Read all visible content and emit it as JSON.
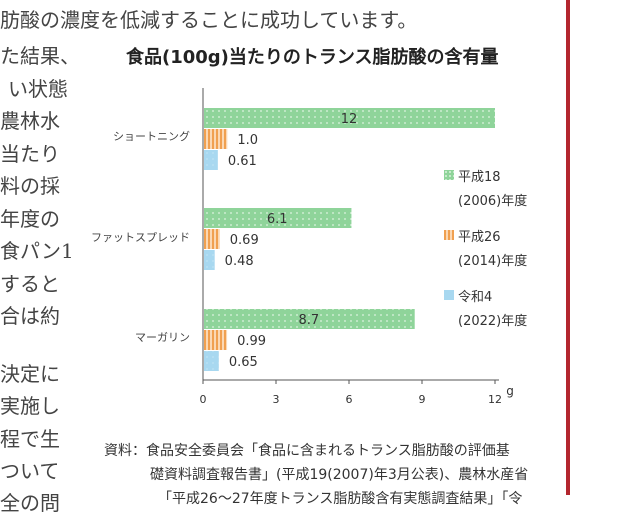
{
  "body_text": {
    "top_line": "肪酸の濃度を低減することに成功しています。",
    "left_fragments": [
      "た結果、",
      "い状態",
      "農林水",
      "当たり",
      "料の採",
      "年度の",
      "食パン1",
      "すると",
      "合は約",
      "決定に",
      "実施し",
      "程で生",
      "ついて",
      "全の問"
    ]
  },
  "legend": [
    {
      "label": "平成18",
      "sub": "(2006)年度",
      "color": "#8fd49a"
    },
    {
      "label": "平成26",
      "sub": "(2014)年度",
      "color": "#f0a860"
    },
    {
      "label": "令和4",
      "sub": "(2022)年度",
      "color": "#a8d8f0"
    }
  ],
  "source": {
    "line1": "資料：食品安全委員会「食品に含まれるトランス脂肪酸の評価基",
    "line2": "礎資料調査報告書」(平成19(2007)年3月公表)、農林水産省",
    "line3": "「平成26～27年度トランス脂肪酸含有実態調査結果」「令"
  },
  "chart_data": {
    "type": "bar",
    "orientation": "horizontal",
    "title": "食品(100g)当たりのトランス脂肪酸の含有量",
    "categories": [
      "ショートニング",
      "ファットスプレッド",
      "マーガリン"
    ],
    "series": [
      {
        "name": "平成18(2006)年度",
        "values": [
          12,
          6.1,
          8.7
        ],
        "value_labels": [
          "12",
          "6.1",
          "8.7"
        ]
      },
      {
        "name": "平成26(2014)年度",
        "values": [
          1.0,
          0.69,
          0.99
        ],
        "value_labels": [
          "1.0",
          "0.69",
          "0.99"
        ]
      },
      {
        "name": "令和4(2022)年度",
        "values": [
          0.61,
          0.48,
          0.65
        ],
        "value_labels": [
          "0.61",
          "0.48",
          "0.65"
        ]
      }
    ],
    "x_ticks": [
      "0",
      "3",
      "6",
      "9",
      "12"
    ],
    "xlim": [
      0,
      12
    ],
    "x_unit": "g",
    "grid": false,
    "legend_position": "right"
  }
}
